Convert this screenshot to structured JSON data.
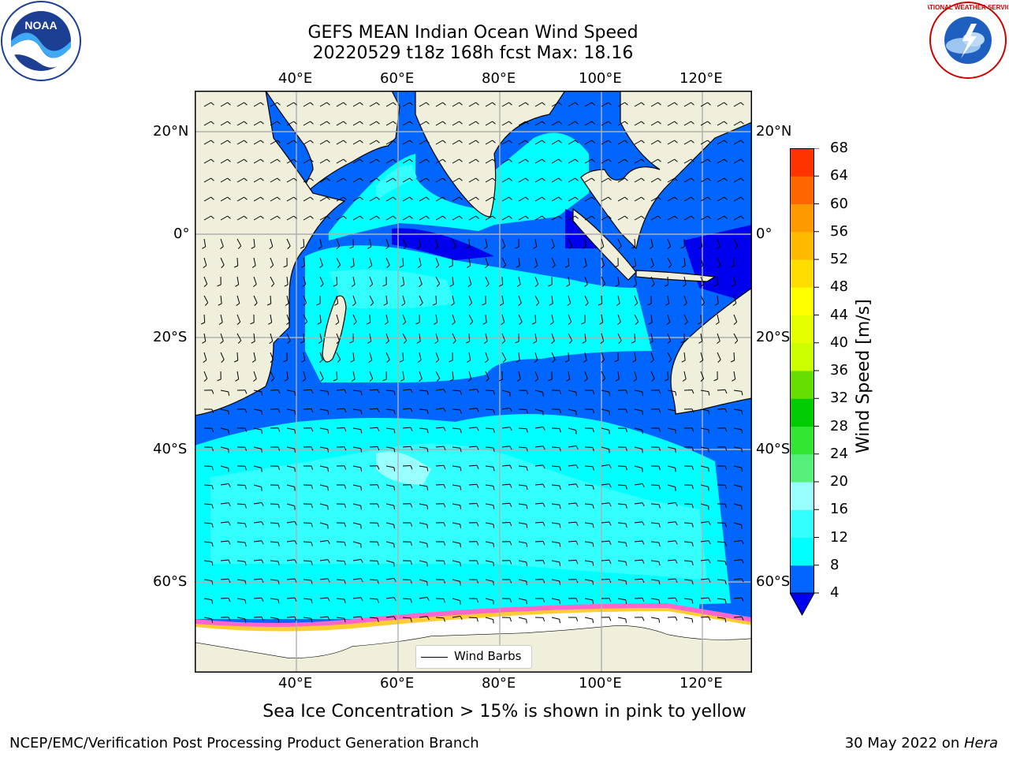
{
  "title_line1": "GEFS MEAN Indian Ocean Wind Speed",
  "title_line2": "20220529 t18z 168h fcst   Max: 18.16",
  "subtitle": "Sea Ice Concentration > 15% is shown in pink to yellow",
  "footer_left": "NCEP/EMC/Verification Post Processing Product Generation Branch",
  "footer_right_date": "30 May 2022 on ",
  "footer_right_host": "Hera",
  "legend_label": "Wind Barbs",
  "colorbar": {
    "label": "Wind Speed [m/s]",
    "ticks": [
      "4",
      "8",
      "12",
      "16",
      "20",
      "24",
      "28",
      "32",
      "36",
      "40",
      "44",
      "48",
      "52",
      "56",
      "60",
      "64",
      "68"
    ],
    "colors": [
      "#0066ff",
      "#00ffff",
      "#33ffff",
      "#99ffff",
      "#55f07a",
      "#33e633",
      "#00cc00",
      "#66dd00",
      "#ccff00",
      "#e6ff00",
      "#ffff00",
      "#ffdd00",
      "#ffbb00",
      "#ff9900",
      "#ff6600",
      "#ff3300",
      "#ff0000"
    ],
    "under_color": "#0000ee"
  },
  "axes": {
    "lon_ticks": [
      "40°E",
      "60°E",
      "80°E",
      "100°E",
      "120°E"
    ],
    "lat_ticks_left": [
      "20°N",
      "0°",
      "20°S",
      "40°S",
      "60°S"
    ],
    "lat_ticks_right": [
      "20°N",
      "0°",
      "20°S",
      "40°S",
      "60°S"
    ]
  },
  "map": {
    "lon_range": [
      20,
      130
    ],
    "lat_range": [
      -70,
      28
    ],
    "land_color": "#efefdc",
    "ice_color": "#ffffff"
  },
  "logos": {
    "left": "NOAA",
    "right": "NATIONAL WEATHER SERVICE"
  }
}
